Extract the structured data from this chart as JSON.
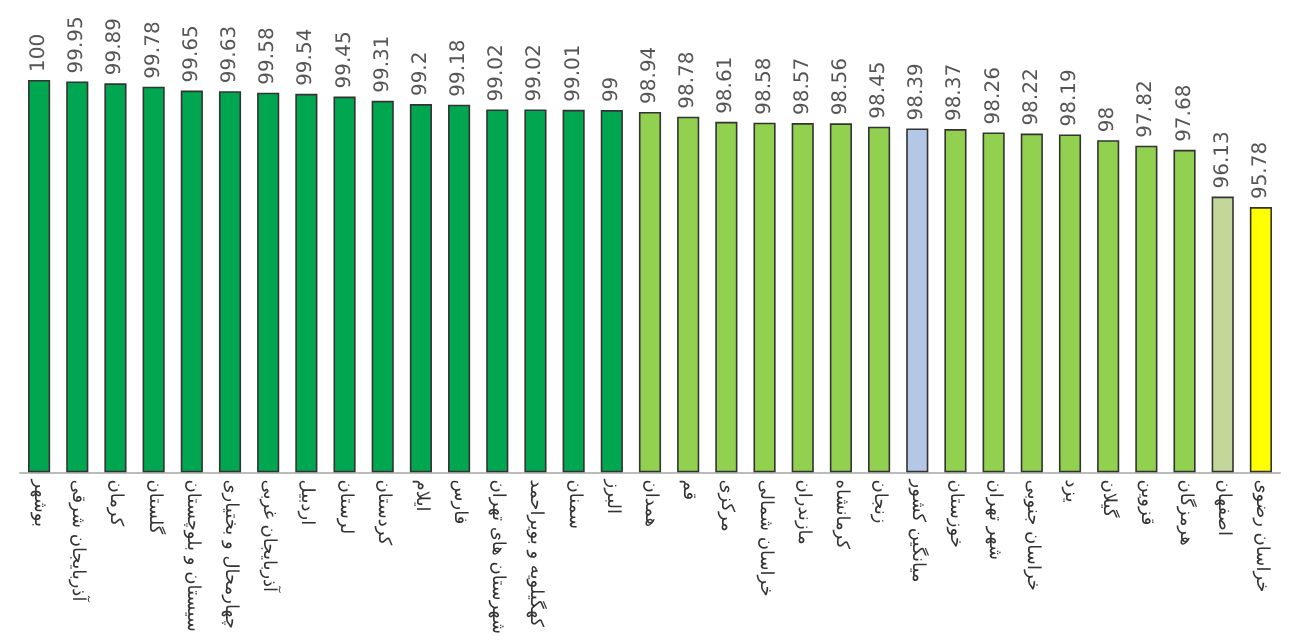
{
  "chart_data": {
    "type": "bar",
    "categories": [
      "بوشهر",
      "آذربایجان شرقی",
      "کرمان",
      "گلستان",
      "سیستان و بلوچستان",
      "چهارمحال و بختیاری",
      "آذربایجان غربی",
      "اردبیل",
      "لرستان",
      "کردستان",
      "ایلام",
      "فارس",
      "شهرستان های تهران",
      "کهگیلویه و بویراحمد",
      "سمنان",
      "البرز",
      "همدان",
      "قم",
      "مرکزی",
      "خراسان شمالی",
      "مازندران",
      "کرمانشاه",
      "زنجان",
      "میانگین کشور",
      "خوزستان",
      "شهر تهران",
      "خراسان جنوبی",
      "یزد",
      "گیلان",
      "قزوین",
      "هرمزگان",
      "اصفهان",
      "خراسان رضوی"
    ],
    "values": [
      100,
      99.95,
      99.89,
      99.78,
      99.65,
      99.63,
      99.58,
      99.54,
      99.45,
      99.31,
      99.2,
      99.18,
      99.02,
      99.02,
      99.01,
      99,
      98.94,
      98.78,
      98.61,
      98.58,
      98.57,
      98.56,
      98.45,
      98.39,
      98.37,
      98.26,
      98.22,
      98.19,
      98,
      97.82,
      97.68,
      96.13,
      95.78
    ],
    "colors": [
      "#00a650",
      "#00a650",
      "#00a650",
      "#00a650",
      "#00a650",
      "#00a650",
      "#00a650",
      "#00a650",
      "#00a650",
      "#00a650",
      "#00a650",
      "#00a650",
      "#00a650",
      "#00a650",
      "#00a650",
      "#00a650",
      "#92d050",
      "#92d050",
      "#92d050",
      "#92d050",
      "#92d050",
      "#92d050",
      "#92d050",
      "#b4c7e7",
      "#92d050",
      "#92d050",
      "#92d050",
      "#92d050",
      "#92d050",
      "#92d050",
      "#92d050",
      "#c4d79b",
      "#ffff00"
    ],
    "ylim": [
      87,
      100
    ],
    "tick_labels": "x",
    "grid": false,
    "data_labels": true
  }
}
